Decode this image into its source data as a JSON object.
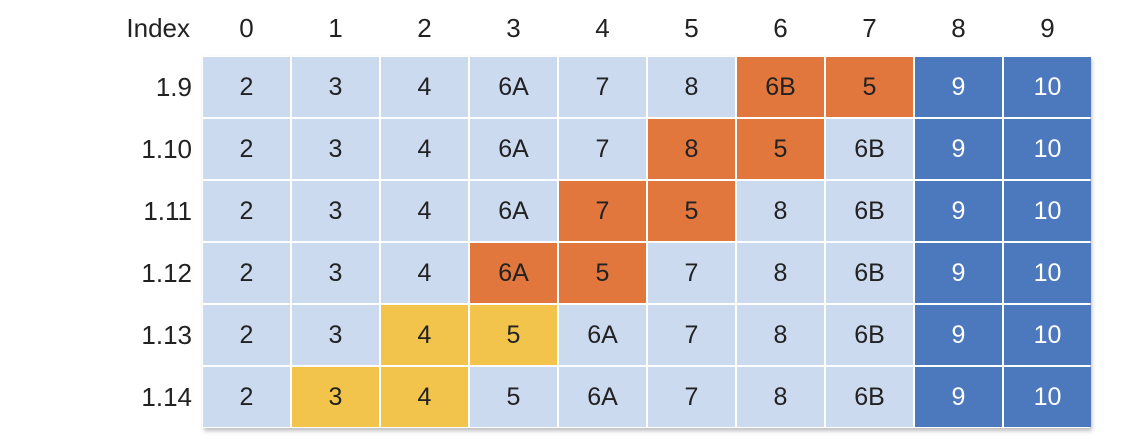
{
  "header": {
    "index_label": "Index",
    "columns": [
      "0",
      "1",
      "2",
      "3",
      "4",
      "5",
      "6",
      "7",
      "8",
      "9"
    ]
  },
  "colors": {
    "light": "#ccdaf0",
    "orange": "#e2773d",
    "yellow": "#f2c44c",
    "blue": "#4c78bd"
  },
  "rows": [
    {
      "label": "1.9",
      "values": [
        "2",
        "3",
        "4",
        "6A",
        "7",
        "8",
        "6B",
        "5",
        "9",
        "10"
      ],
      "fills": [
        "light",
        "light",
        "light",
        "light",
        "light",
        "light",
        "orange",
        "orange",
        "blue",
        "blue"
      ]
    },
    {
      "label": "1.10",
      "values": [
        "2",
        "3",
        "4",
        "6A",
        "7",
        "8",
        "5",
        "6B",
        "9",
        "10"
      ],
      "fills": [
        "light",
        "light",
        "light",
        "light",
        "light",
        "orange",
        "orange",
        "light",
        "blue",
        "blue"
      ]
    },
    {
      "label": "1.11",
      "values": [
        "2",
        "3",
        "4",
        "6A",
        "7",
        "5",
        "8",
        "6B",
        "9",
        "10"
      ],
      "fills": [
        "light",
        "light",
        "light",
        "light",
        "orange",
        "orange",
        "light",
        "light",
        "blue",
        "blue"
      ]
    },
    {
      "label": "1.12",
      "values": [
        "2",
        "3",
        "4",
        "6A",
        "5",
        "7",
        "8",
        "6B",
        "9",
        "10"
      ],
      "fills": [
        "light",
        "light",
        "light",
        "orange",
        "orange",
        "light",
        "light",
        "light",
        "blue",
        "blue"
      ]
    },
    {
      "label": "1.13",
      "values": [
        "2",
        "3",
        "4",
        "5",
        "6A",
        "7",
        "8",
        "6B",
        "9",
        "10"
      ],
      "fills": [
        "light",
        "light",
        "yellow",
        "yellow",
        "light",
        "light",
        "light",
        "light",
        "blue",
        "blue"
      ]
    },
    {
      "label": "1.14",
      "values": [
        "2",
        "3",
        "4",
        "5",
        "6A",
        "7",
        "8",
        "6B",
        "9",
        "10"
      ],
      "fills": [
        "light",
        "yellow",
        "yellow",
        "light",
        "light",
        "light",
        "light",
        "light",
        "blue",
        "blue"
      ]
    }
  ]
}
